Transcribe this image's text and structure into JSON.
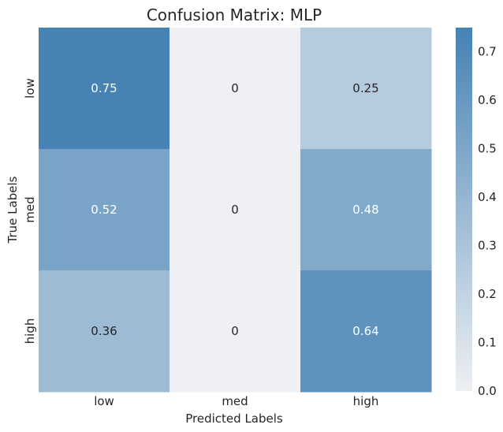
{
  "chart_data": {
    "type": "heatmap",
    "title": "Confusion Matrix: MLP",
    "xlabel": "Predicted Labels",
    "ylabel": "True Labels",
    "x_categories": [
      "low",
      "med",
      "high"
    ],
    "y_categories": [
      "low",
      "med",
      "high"
    ],
    "values": [
      [
        0.75,
        0,
        0.25
      ],
      [
        0.52,
        0,
        0.48
      ],
      [
        0.36,
        0,
        0.64
      ]
    ],
    "value_labels": [
      [
        "0.75",
        "0",
        "0.25"
      ],
      [
        "0.52",
        "0",
        "0.48"
      ],
      [
        "0.36",
        "0",
        "0.64"
      ]
    ],
    "colorbar": {
      "range": [
        0,
        0.75
      ],
      "ticks": [
        "0.0",
        "0.1",
        "0.2",
        "0.3",
        "0.4",
        "0.5",
        "0.6",
        "0.7"
      ],
      "color_low": "#eef0f3",
      "color_high": "#4682b4"
    },
    "grid": false
  }
}
